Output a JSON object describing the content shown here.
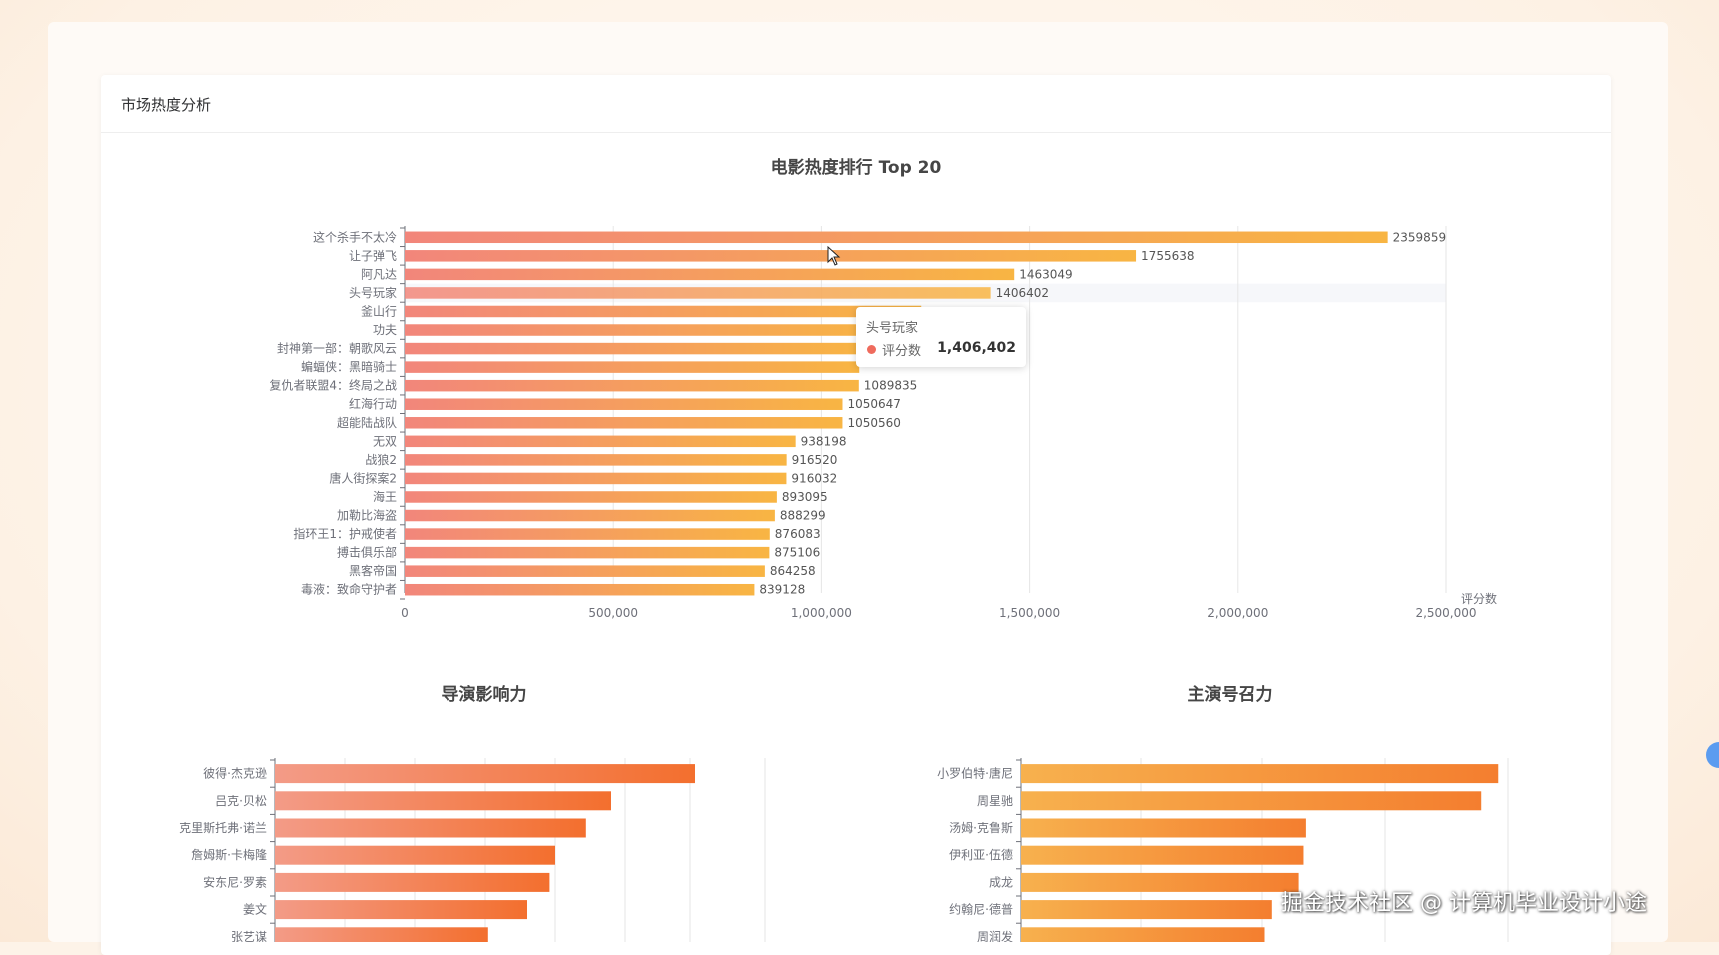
{
  "page": {
    "section_title": "市场热度分析"
  },
  "tooltip": {
    "name": "头号玩家",
    "series": "评分数",
    "value": "1,406,402",
    "dot_color": "#ef6b5d"
  },
  "watermark": "掘金技术社区 @ 计算机毕业设计小途",
  "chart_data": [
    {
      "type": "bar",
      "orientation": "horizontal",
      "title": "电影热度排行 Top 20",
      "xlabel": "评分数",
      "ylabel": "",
      "xlim": [
        0,
        2500000
      ],
      "x_ticks": [
        "0",
        "500,000",
        "1,000,000",
        "1,500,000",
        "2,000,000",
        "2,500,000"
      ],
      "grid": true,
      "colors": [
        "#f2867b",
        "#f8b543"
      ],
      "categories": [
        "这个杀手不太冷",
        "让子弹飞",
        "阿凡达",
        "头号玩家",
        "釜山行",
        "功夫",
        "封神第一部：朝歌风云",
        "蝙蝠侠：黑暗骑士",
        "复仇者联盟4：终局之战",
        "红海行动",
        "超能陆战队",
        "无双",
        "战狼2",
        "唐人街探案2",
        "海王",
        "加勒比海盗",
        "指环王1：护戒使者",
        "搏击俱乐部",
        "黑客帝国",
        "毒液：致命守护者"
      ],
      "values": [
        2359859,
        1755638,
        1463049,
        1406402,
        1239742,
        1160000,
        1110000,
        1090855,
        1089835,
        1050647,
        1050560,
        938198,
        916520,
        916032,
        893095,
        888299,
        876083,
        875106,
        864258,
        839128
      ],
      "value_labels": [
        "2359859",
        "1755638",
        "1463049",
        "1406402",
        "",
        "",
        "",
        "",
        "1089835",
        "1050647",
        "1050560",
        "938198",
        "916520",
        "916032",
        "893095",
        "888299",
        "876083",
        "875106",
        "864258",
        "839128"
      ],
      "highlight_index": 3
    },
    {
      "type": "bar",
      "orientation": "horizontal",
      "title": "导演影响力",
      "colors": [
        "#f39b87",
        "#f36f2e"
      ],
      "xmax": 3.5,
      "categories": [
        "彼得·杰克逊",
        "吕克·贝松",
        "克里斯托弗·诺兰",
        "詹姆斯·卡梅隆",
        "安东尼·罗素",
        "姜文",
        "张艺谋"
      ],
      "values": [
        3.0,
        2.4,
        2.22,
        2.0,
        1.96,
        1.8,
        1.52
      ]
    },
    {
      "type": "bar",
      "orientation": "horizontal",
      "title": "主演号召力",
      "colors": [
        "#f7b14e",
        "#f47e2f"
      ],
      "xmax": 2.0,
      "categories": [
        "小罗伯特·唐尼",
        "周星驰",
        "汤姆·克鲁斯",
        "伊利亚·伍德",
        "成龙",
        "约翰尼·德普",
        "周润发"
      ],
      "values": [
        1.96,
        1.89,
        1.17,
        1.16,
        1.14,
        1.03,
        1.0
      ]
    }
  ]
}
